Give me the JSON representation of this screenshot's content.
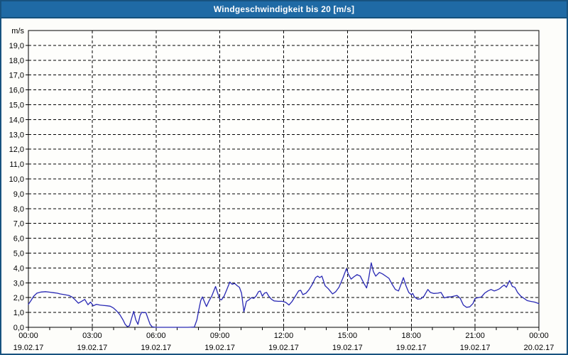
{
  "window": {
    "title": "Windgeschwindigkeit bis 20 [m/s]"
  },
  "colors": {
    "titlebar_bg": "#1f6aa5",
    "titlebar_edge": "#15507c",
    "window_border": "#17527f",
    "window_bg": "#fdfdfa",
    "plot_bg": "#fefefc",
    "grid": "#000000",
    "axis": "#000000",
    "text": "#000000",
    "title_text": "#ffffff",
    "line": "#2828b4"
  },
  "chart_data": {
    "type": "line",
    "title": "Windgeschwindigkeit bis 20 [m/s]",
    "ylabel": "m/s",
    "y_unit_label": "m/s",
    "ylim": [
      0,
      20
    ],
    "xlim_hours": [
      0,
      24
    ],
    "grid": "dashed",
    "legend": "none",
    "y_ticks": [
      {
        "v": 0,
        "label": "0,0"
      },
      {
        "v": 1,
        "label": "1,0"
      },
      {
        "v": 2,
        "label": "2,0"
      },
      {
        "v": 3,
        "label": "3,0"
      },
      {
        "v": 4,
        "label": "4,0"
      },
      {
        "v": 5,
        "label": "5,0"
      },
      {
        "v": 6,
        "label": "6,0"
      },
      {
        "v": 7,
        "label": "7,0"
      },
      {
        "v": 8,
        "label": "8,0"
      },
      {
        "v": 9,
        "label": "9,0"
      },
      {
        "v": 10,
        "label": "10,0"
      },
      {
        "v": 11,
        "label": "11,0"
      },
      {
        "v": 12,
        "label": "12,0"
      },
      {
        "v": 13,
        "label": "13,0"
      },
      {
        "v": 14,
        "label": "14,0"
      },
      {
        "v": 15,
        "label": "15,0"
      },
      {
        "v": 16,
        "label": "16,0"
      },
      {
        "v": 17,
        "label": "17,0"
      },
      {
        "v": 18,
        "label": "18,0"
      },
      {
        "v": 19,
        "label": "19,0"
      }
    ],
    "x_ticks": [
      {
        "hour": 0,
        "time": "00:00",
        "date": "19.02.17"
      },
      {
        "hour": 3,
        "time": "03:00",
        "date": "19.02.17"
      },
      {
        "hour": 6,
        "time": "06:00",
        "date": "19.02.17"
      },
      {
        "hour": 9,
        "time": "09:00",
        "date": "19.02.17"
      },
      {
        "hour": 12,
        "time": "12:00",
        "date": "19.02.17"
      },
      {
        "hour": 15,
        "time": "15:00",
        "date": "19.02.17"
      },
      {
        "hour": 18,
        "time": "18:00",
        "date": "19.02.17"
      },
      {
        "hour": 21,
        "time": "21:00",
        "date": "19.02.17"
      },
      {
        "hour": 24,
        "time": "00:00",
        "date": "20.02.17"
      }
    ],
    "minor_x_tick_hours": 1,
    "series": [
      {
        "name": "Windgeschwindigkeit",
        "color": "#2828b4",
        "points": [
          [
            0,
            1.55
          ],
          [
            0.12,
            1.8
          ],
          [
            0.25,
            2.1
          ],
          [
            0.4,
            2.3
          ],
          [
            0.6,
            2.38
          ],
          [
            0.8,
            2.4
          ],
          [
            1.0,
            2.37
          ],
          [
            1.2,
            2.33
          ],
          [
            1.35,
            2.3
          ],
          [
            1.5,
            2.25
          ],
          [
            1.7,
            2.2
          ],
          [
            1.9,
            2.15
          ],
          [
            2.05,
            2.05
          ],
          [
            2.2,
            1.85
          ],
          [
            2.35,
            1.62
          ],
          [
            2.5,
            1.75
          ],
          [
            2.65,
            1.88
          ],
          [
            2.8,
            1.52
          ],
          [
            2.92,
            1.7
          ],
          [
            3.05,
            1.45
          ],
          [
            3.2,
            1.55
          ],
          [
            3.35,
            1.5
          ],
          [
            3.5,
            1.48
          ],
          [
            3.7,
            1.45
          ],
          [
            3.85,
            1.42
          ],
          [
            4.0,
            1.3
          ],
          [
            4.15,
            1.1
          ],
          [
            4.3,
            0.85
          ],
          [
            4.45,
            0.5
          ],
          [
            4.55,
            0.2
          ],
          [
            4.65,
            0.05
          ],
          [
            4.75,
            0.1
          ],
          [
            4.85,
            0.6
          ],
          [
            4.95,
            1.07
          ],
          [
            5.05,
            0.5
          ],
          [
            5.15,
            0.2
          ],
          [
            5.25,
            0.8
          ],
          [
            5.33,
            1.02
          ],
          [
            5.42,
            0.98
          ],
          [
            5.52,
            1.0
          ],
          [
            5.62,
            0.6
          ],
          [
            5.72,
            0.2
          ],
          [
            5.82,
            0.03
          ],
          [
            6.0,
            0
          ],
          [
            6.3,
            0
          ],
          [
            6.6,
            0
          ],
          [
            6.9,
            0
          ],
          [
            7.2,
            0
          ],
          [
            7.5,
            0
          ],
          [
            7.8,
            0.02
          ],
          [
            7.92,
            0.5
          ],
          [
            8.0,
            1.1
          ],
          [
            8.1,
            1.8
          ],
          [
            8.18,
            2.05
          ],
          [
            8.28,
            1.7
          ],
          [
            8.37,
            1.4
          ],
          [
            8.5,
            1.8
          ],
          [
            8.62,
            2.1
          ],
          [
            8.73,
            2.5
          ],
          [
            8.8,
            2.75
          ],
          [
            8.9,
            2.3
          ],
          [
            9.0,
            1.9
          ],
          [
            9.08,
            1.85
          ],
          [
            9.2,
            2.1
          ],
          [
            9.33,
            2.55
          ],
          [
            9.47,
            3.05
          ],
          [
            9.58,
            2.9
          ],
          [
            9.7,
            2.95
          ],
          [
            9.82,
            2.8
          ],
          [
            9.92,
            2.7
          ],
          [
            10.02,
            2.3
          ],
          [
            10.13,
            1.05
          ],
          [
            10.25,
            1.75
          ],
          [
            10.37,
            1.85
          ],
          [
            10.48,
            2.0
          ],
          [
            10.6,
            1.95
          ],
          [
            10.7,
            2.1
          ],
          [
            10.82,
            2.4
          ],
          [
            10.9,
            2.45
          ],
          [
            11.0,
            2.1
          ],
          [
            11.1,
            2.3
          ],
          [
            11.2,
            2.35
          ],
          [
            11.3,
            2.1
          ],
          [
            11.42,
            1.9
          ],
          [
            11.55,
            1.78
          ],
          [
            11.75,
            1.75
          ],
          [
            11.95,
            1.75
          ],
          [
            12.1,
            1.68
          ],
          [
            12.25,
            1.5
          ],
          [
            12.4,
            1.75
          ],
          [
            12.55,
            2.1
          ],
          [
            12.7,
            2.45
          ],
          [
            12.8,
            2.5
          ],
          [
            12.9,
            2.2
          ],
          [
            13.05,
            2.3
          ],
          [
            13.2,
            2.55
          ],
          [
            13.35,
            2.9
          ],
          [
            13.5,
            3.35
          ],
          [
            13.6,
            3.45
          ],
          [
            13.7,
            3.35
          ],
          [
            13.8,
            3.45
          ],
          [
            13.95,
            2.8
          ],
          [
            14.1,
            2.6
          ],
          [
            14.3,
            2.25
          ],
          [
            14.45,
            2.4
          ],
          [
            14.6,
            2.7
          ],
          [
            14.78,
            3.3
          ],
          [
            14.95,
            3.95
          ],
          [
            15.05,
            3.55
          ],
          [
            15.17,
            3.25
          ],
          [
            15.3,
            3.4
          ],
          [
            15.45,
            3.55
          ],
          [
            15.6,
            3.45
          ],
          [
            15.78,
            2.95
          ],
          [
            15.9,
            2.65
          ],
          [
            16.0,
            3.3
          ],
          [
            16.12,
            4.35
          ],
          [
            16.22,
            3.75
          ],
          [
            16.33,
            3.45
          ],
          [
            16.5,
            3.7
          ],
          [
            16.65,
            3.6
          ],
          [
            16.8,
            3.45
          ],
          [
            16.95,
            3.3
          ],
          [
            17.1,
            2.9
          ],
          [
            17.25,
            2.55
          ],
          [
            17.4,
            2.45
          ],
          [
            17.52,
            2.9
          ],
          [
            17.63,
            3.35
          ],
          [
            17.75,
            2.8
          ],
          [
            17.88,
            2.35
          ],
          [
            18.0,
            2.2
          ],
          [
            18.07,
            2.28
          ],
          [
            18.15,
            2.05
          ],
          [
            18.3,
            1.9
          ],
          [
            18.45,
            1.92
          ],
          [
            18.6,
            2.1
          ],
          [
            18.78,
            2.55
          ],
          [
            18.9,
            2.35
          ],
          [
            19.05,
            2.28
          ],
          [
            19.25,
            2.3
          ],
          [
            19.4,
            2.35
          ],
          [
            19.55,
            1.98
          ],
          [
            19.7,
            2.05
          ],
          [
            19.85,
            2.05
          ],
          [
            20.0,
            2.1
          ],
          [
            20.15,
            2.15
          ],
          [
            20.3,
            1.95
          ],
          [
            20.45,
            1.5
          ],
          [
            20.6,
            1.35
          ],
          [
            20.75,
            1.38
          ],
          [
            20.9,
            1.6
          ],
          [
            21.0,
            1.95
          ],
          [
            21.15,
            2.0
          ],
          [
            21.3,
            2.05
          ],
          [
            21.45,
            2.3
          ],
          [
            21.6,
            2.45
          ],
          [
            21.75,
            2.55
          ],
          [
            21.9,
            2.45
          ],
          [
            22.0,
            2.5
          ],
          [
            22.15,
            2.6
          ],
          [
            22.27,
            2.75
          ],
          [
            22.37,
            2.85
          ],
          [
            22.47,
            2.7
          ],
          [
            22.62,
            3.15
          ],
          [
            22.75,
            2.75
          ],
          [
            22.87,
            2.7
          ],
          [
            23.0,
            2.35
          ],
          [
            23.15,
            2.1
          ],
          [
            23.3,
            1.95
          ],
          [
            23.45,
            1.8
          ],
          [
            23.6,
            1.75
          ],
          [
            23.8,
            1.7
          ],
          [
            24.0,
            1.6
          ]
        ]
      }
    ]
  }
}
